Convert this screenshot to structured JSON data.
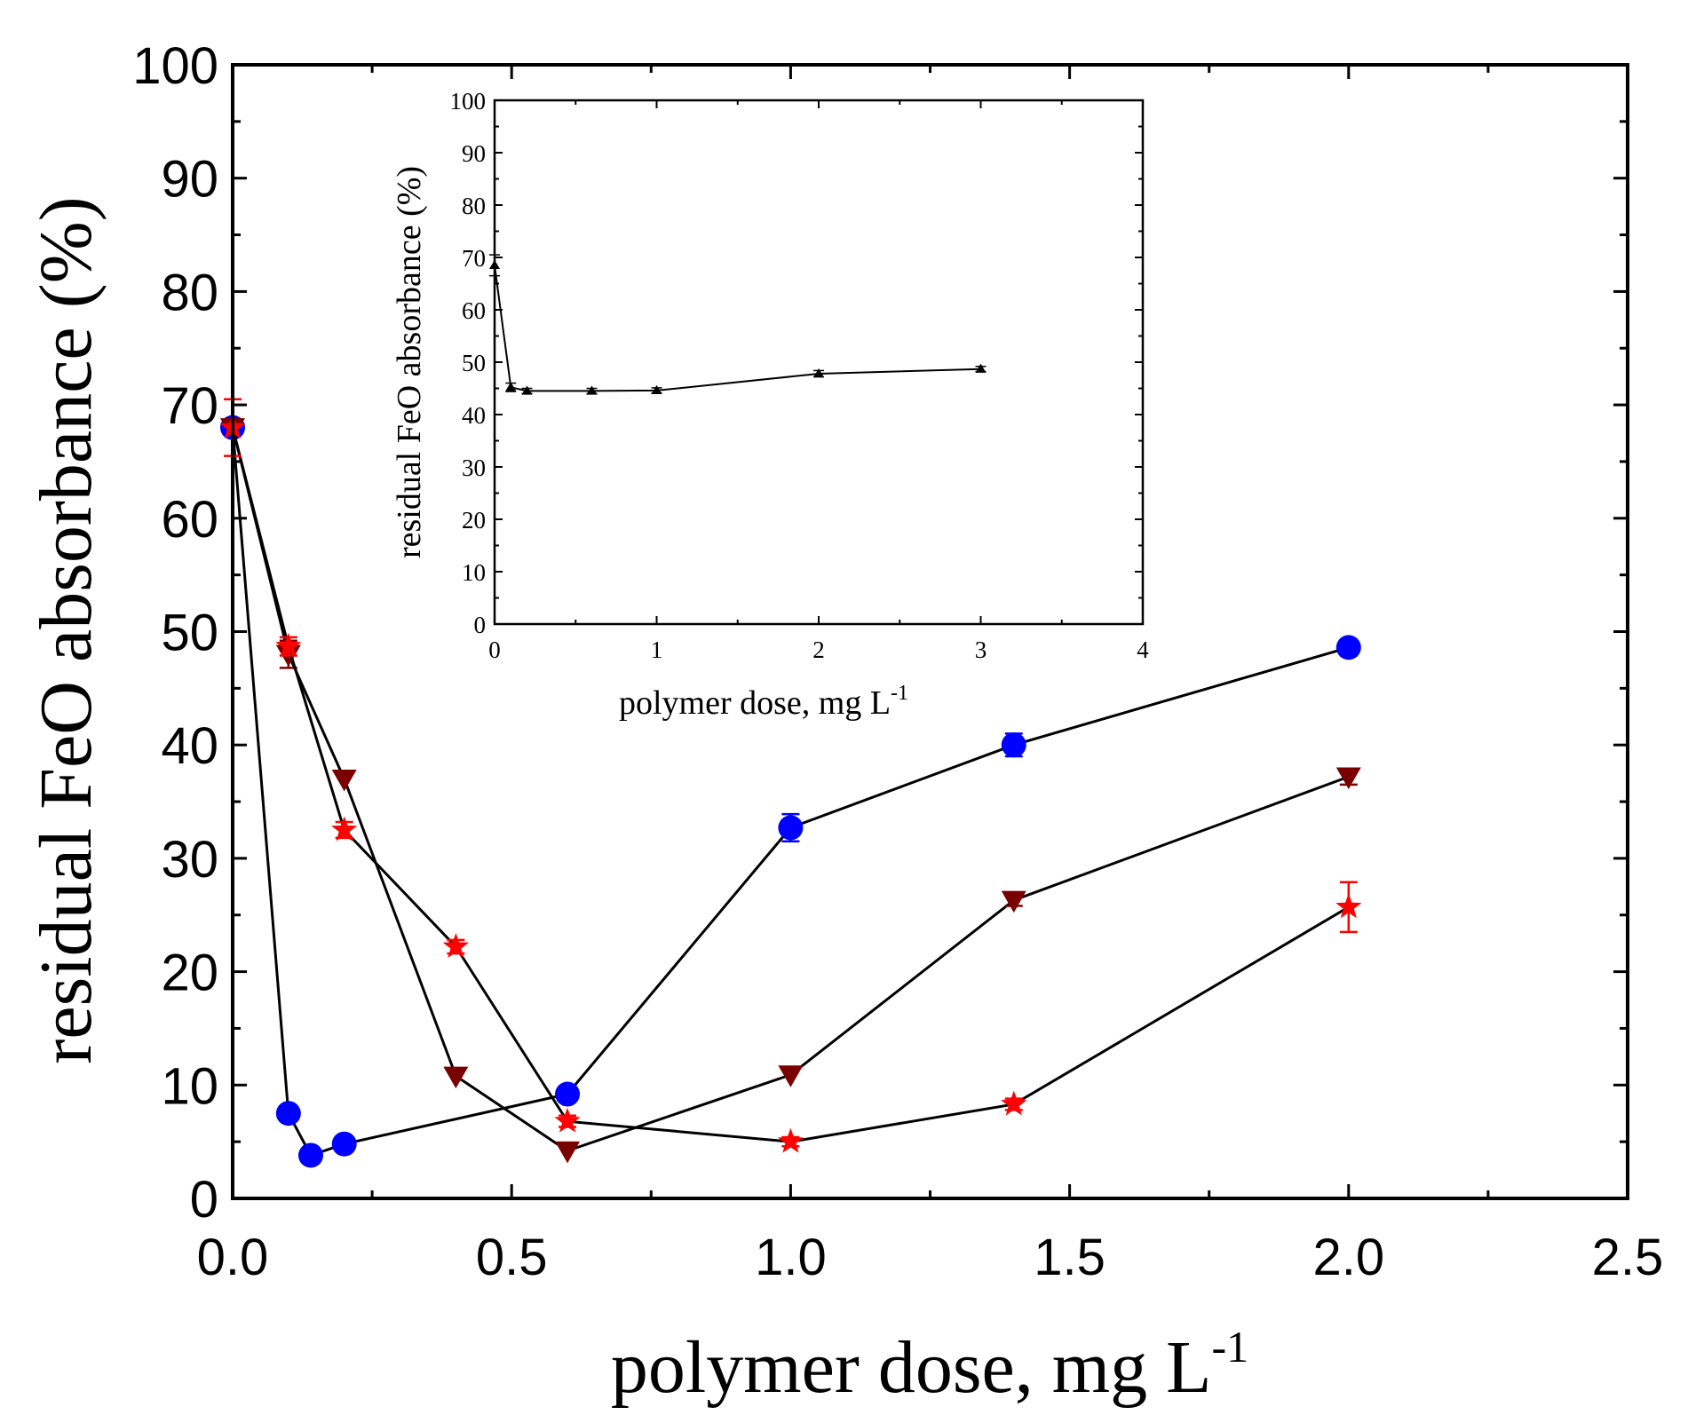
{
  "chart_data": [
    {
      "type": "line",
      "role": "main",
      "xlabel_text": "polymer dose, mg L",
      "xlabel_sup": "-1",
      "ylabel": "residual FeO absorbance (%)",
      "xlim": [
        0,
        2.5
      ],
      "ylim": [
        0,
        100
      ],
      "xticks": [
        "0.0",
        "0.5",
        "1.0",
        "1.5",
        "2.0",
        "2.5"
      ],
      "xtick_values": [
        0,
        0.5,
        1.0,
        1.5,
        2.0,
        2.5
      ],
      "yticks": [
        "0",
        "10",
        "20",
        "30",
        "40",
        "50",
        "60",
        "70",
        "80",
        "90",
        "100"
      ],
      "ytick_values": [
        0,
        10,
        20,
        30,
        40,
        50,
        60,
        70,
        80,
        90,
        100
      ],
      "series": [
        {
          "name": "circles",
          "marker": "circle",
          "color": "#0000ff",
          "x": [
            0,
            0.1,
            0.14,
            0.2,
            0.6,
            1.0,
            1.4,
            2.0
          ],
          "y": [
            68,
            7.5,
            3.8,
            4.8,
            9.2,
            32.7,
            40.0,
            48.6
          ],
          "err": [
            0,
            0,
            0,
            0,
            0,
            1.2,
            1.0,
            0.7
          ]
        },
        {
          "name": "triangles",
          "marker": "triangle-down",
          "color": "#7a0000",
          "x": [
            0,
            0.1,
            0.2,
            0.4,
            0.6,
            1.0,
            1.4,
            2.0
          ],
          "y": [
            68,
            48.0,
            37.0,
            10.8,
            4.2,
            10.9,
            26.3,
            37.2
          ],
          "err": [
            0,
            1.2,
            0,
            0,
            0,
            0,
            0.5,
            0.7
          ]
        },
        {
          "name": "stars",
          "marker": "star",
          "color": "#ff0000",
          "x": [
            0,
            0.1,
            0.2,
            0.4,
            0.6,
            1.0,
            1.4,
            2.0
          ],
          "y": [
            68,
            48.7,
            32.5,
            22.2,
            6.8,
            5.0,
            8.3,
            25.7
          ],
          "err": [
            2.5,
            0.8,
            0.7,
            0.6,
            0.5,
            0.4,
            0.5,
            2.2
          ]
        }
      ]
    },
    {
      "type": "line",
      "role": "inset",
      "xlabel_text": "polymer dose, mg L",
      "xlabel_sup": "-1",
      "ylabel": "residual FeO absorbance (%)",
      "xlim": [
        0,
        4
      ],
      "ylim": [
        0,
        100
      ],
      "xticks": [
        "0",
        "1",
        "2",
        "3",
        "4"
      ],
      "xtick_values": [
        0,
        1,
        2,
        3,
        4
      ],
      "yticks": [
        "0",
        "10",
        "20",
        "30",
        "40",
        "50",
        "60",
        "70",
        "80",
        "90",
        "100"
      ],
      "ytick_values": [
        0,
        10,
        20,
        30,
        40,
        50,
        60,
        70,
        80,
        90,
        100
      ],
      "series": [
        {
          "name": "inset-series",
          "marker": "triangle-up",
          "color": "#000000",
          "x": [
            0,
            0.1,
            0.2,
            0.6,
            1.0,
            2.0,
            3.0
          ],
          "y": [
            68.5,
            45.2,
            44.5,
            44.5,
            44.6,
            47.8,
            48.7
          ],
          "err": [
            2.0,
            0.8,
            0.5,
            0.5,
            0.5,
            0.6,
            0.5
          ]
        }
      ]
    }
  ]
}
